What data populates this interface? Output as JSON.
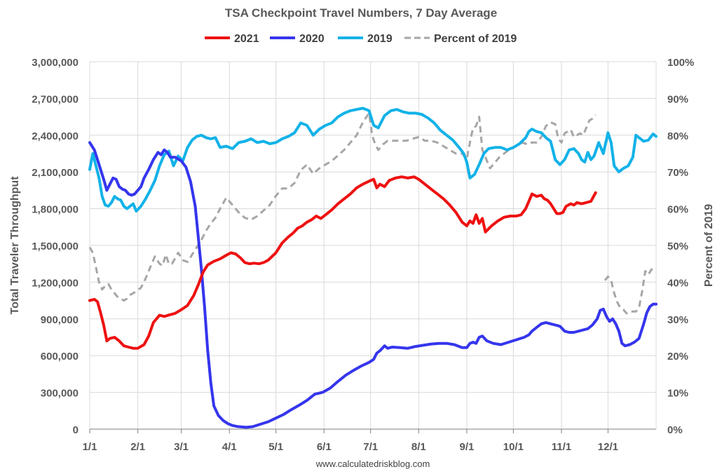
{
  "chart_data": {
    "type": "line",
    "title": "TSA Checkpoint Travel Numbers, 7 Day Average",
    "ylabel": "Total Traveler Throughput",
    "y2label": "Percent of 2019",
    "ylim": [
      0,
      3000000
    ],
    "y2lim": [
      0,
      100
    ],
    "xlim": [
      0,
      365
    ],
    "grid": true,
    "legend_position": "top",
    "footer": "www.calculatedriskblog.com",
    "y_ticks": [
      0,
      300000,
      600000,
      900000,
      1200000,
      1500000,
      1800000,
      2100000,
      2400000,
      2700000,
      3000000
    ],
    "y_tick_labels": [
      "0",
      "300,000",
      "600,000",
      "900,000",
      "1,200,000",
      "1,500,000",
      "1,800,000",
      "2,100,000",
      "2,400,000",
      "2,700,000",
      "3,000,000"
    ],
    "y2_ticks": [
      0,
      10,
      20,
      30,
      40,
      50,
      60,
      70,
      80,
      90,
      100
    ],
    "y2_tick_labels": [
      "0%",
      "10%",
      "20%",
      "30%",
      "40%",
      "50%",
      "60%",
      "70%",
      "80%",
      "90%",
      "100%"
    ],
    "x_ticks": [
      0,
      31,
      59,
      90,
      120,
      151,
      181,
      212,
      243,
      273,
      304,
      334
    ],
    "x_tick_labels": [
      "1/1",
      "2/1",
      "3/1",
      "4/1",
      "5/1",
      "6/1",
      "7/1",
      "8/1",
      "9/1",
      "10/1",
      "11/1",
      "12/1"
    ],
    "series": [
      {
        "name": "2021",
        "color": "#ee1111",
        "dashed": false,
        "axis": "left",
        "x": [
          0,
          3,
          5,
          7,
          9,
          11,
          13,
          16,
          19,
          22,
          25,
          28,
          31,
          35,
          38,
          41,
          45,
          48,
          52,
          55,
          59,
          63,
          67,
          70,
          73,
          76,
          80,
          84,
          88,
          91,
          94,
          97,
          100,
          103,
          106,
          109,
          112,
          115,
          120,
          124,
          128,
          131,
          134,
          137,
          140,
          143,
          146,
          149,
          152,
          156,
          160,
          164,
          168,
          172,
          176,
          181,
          183,
          185,
          187,
          190,
          193,
          197,
          201,
          205,
          209,
          212,
          216,
          220,
          224,
          228,
          232,
          236,
          240,
          243,
          245,
          247,
          249,
          251,
          253,
          255,
          259,
          263,
          267,
          271,
          275,
          278,
          281,
          283,
          285,
          288,
          291,
          293,
          295,
          297,
          299,
          301,
          303,
          305,
          307,
          310,
          312,
          314,
          317,
          320,
          323,
          326
        ],
        "values": [
          1050000,
          1060000,
          1040000,
          950000,
          850000,
          720000,
          740000,
          750000,
          720000,
          680000,
          670000,
          660000,
          660000,
          690000,
          760000,
          870000,
          930000,
          920000,
          935000,
          945000,
          975000,
          1010000,
          1090000,
          1180000,
          1280000,
          1340000,
          1370000,
          1390000,
          1420000,
          1440000,
          1430000,
          1400000,
          1360000,
          1350000,
          1355000,
          1350000,
          1360000,
          1380000,
          1440000,
          1520000,
          1570000,
          1600000,
          1640000,
          1660000,
          1690000,
          1710000,
          1740000,
          1720000,
          1750000,
          1790000,
          1840000,
          1880000,
          1920000,
          1970000,
          2000000,
          2030000,
          2040000,
          1970000,
          2000000,
          1980000,
          2030000,
          2050000,
          2060000,
          2050000,
          2060000,
          2040000,
          2000000,
          1960000,
          1920000,
          1880000,
          1830000,
          1770000,
          1690000,
          1660000,
          1700000,
          1680000,
          1750000,
          1680000,
          1720000,
          1610000,
          1660000,
          1700000,
          1730000,
          1740000,
          1740000,
          1750000,
          1800000,
          1860000,
          1920000,
          1900000,
          1910000,
          1880000,
          1870000,
          1840000,
          1800000,
          1760000,
          1760000,
          1770000,
          1820000,
          1840000,
          1830000,
          1850000,
          1840000,
          1850000,
          1860000,
          1930000
        ]
      },
      {
        "name": "2020",
        "color": "#3535ee",
        "dashed": false,
        "axis": "left",
        "x": [
          0,
          3,
          5,
          7,
          9,
          11,
          13,
          15,
          17,
          19,
          21,
          23,
          25,
          27,
          29,
          31,
          33,
          35,
          38,
          41,
          44,
          46,
          48,
          50,
          52,
          55,
          59,
          62,
          65,
          68,
          70,
          72,
          74,
          76,
          78,
          80,
          83,
          86,
          89,
          92,
          95,
          98,
          101,
          105,
          110,
          115,
          120,
          125,
          130,
          135,
          140,
          145,
          150,
          155,
          160,
          165,
          170,
          175,
          180,
          183,
          185,
          187,
          190,
          192,
          195,
          200,
          205,
          210,
          215,
          220,
          225,
          230,
          235,
          240,
          243,
          245,
          247,
          249,
          251,
          253,
          256,
          260,
          265,
          270,
          275,
          280,
          283,
          285,
          288,
          291,
          294,
          297,
          300,
          303,
          306,
          309,
          312,
          315,
          318,
          321,
          324,
          327,
          329,
          331,
          333,
          335,
          337,
          339,
          341,
          343,
          345,
          348,
          351,
          354,
          357,
          359,
          361,
          363,
          365
        ],
        "values": [
          2340000,
          2280000,
          2200000,
          2120000,
          2040000,
          1950000,
          2000000,
          2050000,
          2040000,
          1980000,
          1960000,
          1950000,
          1920000,
          1910000,
          1920000,
          1950000,
          1980000,
          2050000,
          2120000,
          2200000,
          2260000,
          2240000,
          2280000,
          2260000,
          2220000,
          2220000,
          2190000,
          2140000,
          2020000,
          1820000,
          1560000,
          1300000,
          1000000,
          650000,
          380000,
          190000,
          110000,
          70000,
          45000,
          30000,
          22000,
          18000,
          15000,
          20000,
          40000,
          60000,
          90000,
          120000,
          160000,
          195000,
          235000,
          285000,
          300000,
          335000,
          390000,
          440000,
          480000,
          515000,
          545000,
          570000,
          620000,
          640000,
          680000,
          660000,
          670000,
          665000,
          660000,
          675000,
          685000,
          695000,
          700000,
          700000,
          690000,
          665000,
          665000,
          700000,
          710000,
          700000,
          750000,
          760000,
          720000,
          700000,
          690000,
          710000,
          730000,
          750000,
          770000,
          800000,
          830000,
          860000,
          870000,
          860000,
          850000,
          840000,
          800000,
          790000,
          790000,
          800000,
          810000,
          820000,
          850000,
          900000,
          970000,
          980000,
          920000,
          880000,
          900000,
          860000,
          800000,
          700000,
          680000,
          690000,
          710000,
          740000,
          860000,
          950000,
          1000000,
          1020000,
          1020000
        ]
      },
      {
        "name": "2019",
        "color": "#12b2e8",
        "dashed": false,
        "axis": "left",
        "x": [
          0,
          2,
          4,
          6,
          8,
          10,
          12,
          14,
          16,
          18,
          20,
          22,
          24,
          26,
          28,
          30,
          33,
          36,
          39,
          42,
          45,
          48,
          51,
          54,
          57,
          60,
          63,
          66,
          69,
          72,
          75,
          78,
          81,
          84,
          88,
          92,
          96,
          100,
          104,
          108,
          112,
          116,
          120,
          124,
          128,
          132,
          136,
          140,
          144,
          148,
          152,
          156,
          160,
          164,
          168,
          172,
          176,
          180,
          183,
          186,
          190,
          194,
          198,
          202,
          206,
          210,
          214,
          218,
          222,
          226,
          230,
          234,
          238,
          241,
          243,
          245,
          248,
          251,
          254,
          257,
          261,
          265,
          269,
          273,
          277,
          281,
          283,
          285,
          288,
          291,
          294,
          297,
          300,
          303,
          306,
          309,
          312,
          315,
          317,
          319,
          321,
          323,
          325,
          328,
          331,
          334,
          336,
          338,
          341,
          344,
          347,
          350,
          352,
          354,
          357,
          360,
          363,
          365
        ],
        "values": [
          2120000,
          2250000,
          2150000,
          2050000,
          1900000,
          1830000,
          1820000,
          1850000,
          1900000,
          1880000,
          1870000,
          1820000,
          1800000,
          1820000,
          1840000,
          1780000,
          1820000,
          1880000,
          1950000,
          2030000,
          2150000,
          2240000,
          2270000,
          2150000,
          2230000,
          2190000,
          2300000,
          2360000,
          2390000,
          2400000,
          2380000,
          2370000,
          2380000,
          2300000,
          2310000,
          2290000,
          2340000,
          2350000,
          2370000,
          2340000,
          2350000,
          2330000,
          2340000,
          2370000,
          2390000,
          2420000,
          2500000,
          2480000,
          2400000,
          2450000,
          2480000,
          2500000,
          2550000,
          2580000,
          2600000,
          2610000,
          2620000,
          2600000,
          2480000,
          2460000,
          2560000,
          2600000,
          2610000,
          2590000,
          2580000,
          2580000,
          2570000,
          2540000,
          2500000,
          2440000,
          2400000,
          2360000,
          2300000,
          2250000,
          2180000,
          2050000,
          2080000,
          2160000,
          2250000,
          2290000,
          2300000,
          2300000,
          2280000,
          2300000,
          2330000,
          2380000,
          2430000,
          2450000,
          2430000,
          2420000,
          2380000,
          2350000,
          2200000,
          2160000,
          2200000,
          2280000,
          2290000,
          2250000,
          2200000,
          2180000,
          2260000,
          2200000,
          2230000,
          2340000,
          2250000,
          2420000,
          2340000,
          2150000,
          2100000,
          2130000,
          2150000,
          2220000,
          2400000,
          2380000,
          2350000,
          2360000,
          2410000,
          2390000
        ]
      },
      {
        "name": "Percent of 2019",
        "color": "#a6a6a6",
        "dashed": true,
        "axis": "right",
        "x": [
          0,
          2,
          4,
          6,
          8,
          10,
          12,
          14,
          16,
          18,
          20,
          22,
          24,
          26,
          28,
          30,
          33,
          36,
          39,
          42,
          45,
          47,
          49,
          51,
          53,
          55,
          57,
          60,
          63,
          66,
          69,
          72,
          75,
          78,
          81,
          84,
          88,
          92,
          96,
          100,
          104,
          108,
          112,
          116,
          120,
          124,
          128,
          132,
          136,
          140,
          144,
          148,
          152,
          156,
          160,
          164,
          168,
          172,
          176,
          180,
          182,
          184,
          186,
          189,
          192,
          196,
          200,
          204,
          208,
          212,
          216,
          220,
          224,
          228,
          232,
          236,
          240,
          243,
          245,
          247,
          249,
          251,
          253,
          255,
          258,
          261,
          264,
          267,
          270,
          273,
          276,
          279,
          282,
          285,
          288,
          291,
          294,
          297,
          300,
          302,
          304,
          306,
          308,
          310,
          312,
          314,
          316,
          318,
          320,
          322,
          324,
          326
        ],
        "values": [
          49.5,
          48,
          44,
          40,
          38,
          39,
          39.5,
          38,
          37,
          36,
          35.5,
          35,
          35.5,
          36.5,
          37,
          37.5,
          38.5,
          41,
          44,
          47,
          45,
          44.5,
          47.5,
          45,
          45,
          46.5,
          48,
          46,
          45.5,
          47.5,
          49.5,
          51.5,
          54,
          56,
          57.5,
          60,
          63,
          61,
          59,
          57.5,
          57,
          58,
          59.5,
          61,
          63.5,
          65.5,
          65.5,
          67,
          70.5,
          72,
          69.5,
          71,
          72,
          73,
          74.5,
          76,
          78,
          80,
          83.5,
          86,
          80,
          77.5,
          76,
          77.5,
          78.5,
          78.5,
          78.5,
          78.5,
          79,
          79.5,
          78.5,
          78.5,
          78,
          77,
          76,
          75,
          75,
          73.5,
          78,
          82,
          82.5,
          85,
          76,
          74,
          71,
          72.5,
          74,
          75,
          76,
          76.5,
          77.5,
          78,
          77.5,
          78,
          78,
          79.5,
          82.5,
          83.5,
          83,
          79,
          78,
          80.5,
          81,
          81.5,
          79.5,
          80,
          80.5,
          80,
          82,
          84,
          84.5,
          85.5
        ]
      },
      {
        "name": "Percent of 2019 (Dec)",
        "color": "#a6a6a6",
        "dashed": true,
        "axis": "right",
        "in_legend": false,
        "x": [
          332,
          334,
          336,
          338,
          340,
          342,
          344,
          346,
          348,
          350,
          352,
          354,
          356,
          358,
          360,
          362,
          365
        ],
        "values": [
          40.5,
          41.5,
          40.5,
          37,
          34.5,
          33,
          32.5,
          31.5,
          32,
          32,
          32,
          33,
          37.5,
          43,
          42,
          43.5,
          43.5
        ]
      }
    ]
  }
}
